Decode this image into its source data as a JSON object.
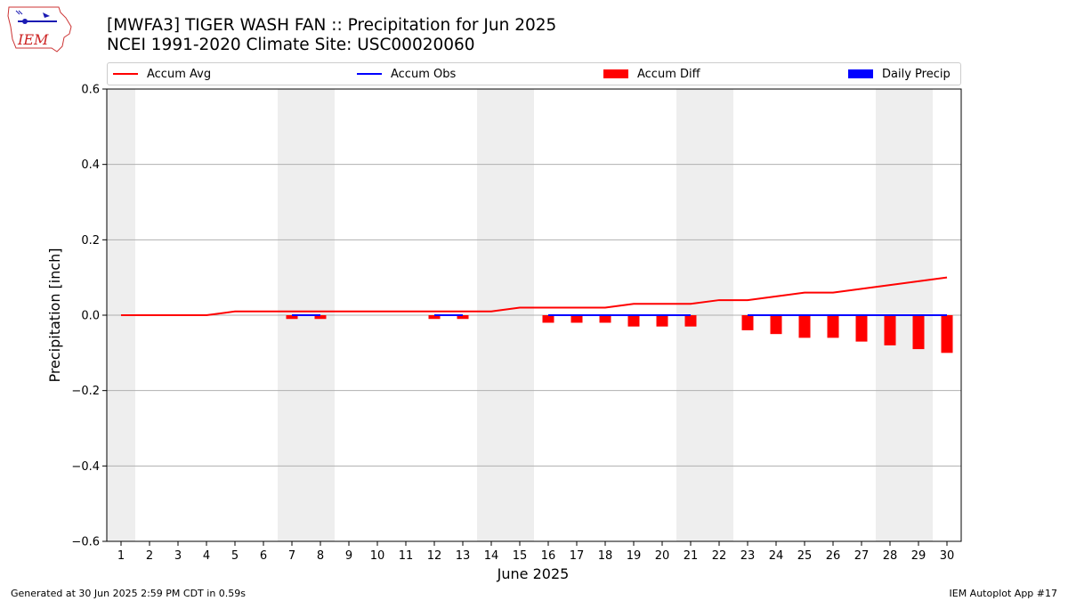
{
  "header": {
    "title_line1": "[MWFA3] TIGER WASH FAN :: Precipitation for Jun 2025",
    "title_line2": "NCEI 1991-2020 Climate Site: USC00020060",
    "logo_text": "IEM"
  },
  "legend": {
    "items": [
      {
        "label": "Accum Avg",
        "color": "#ff0000",
        "kind": "line"
      },
      {
        "label": "Accum Obs",
        "color": "#0000ff",
        "kind": "line"
      },
      {
        "label": "Accum Diff",
        "color": "#ff0000",
        "kind": "box"
      },
      {
        "label": "Daily Precip",
        "color": "#0000ff",
        "kind": "box"
      }
    ]
  },
  "chart_data": {
    "type": "line",
    "xlabel": "June 2025",
    "ylabel": "Precipitation [inch]",
    "ylim": [
      -0.6,
      0.6
    ],
    "yticks": [
      -0.6,
      -0.4,
      -0.2,
      0.0,
      0.2,
      0.4,
      0.6
    ],
    "ytick_labels": [
      "−0.6",
      "−0.4",
      "−0.2",
      "0.0",
      "0.2",
      "0.4",
      "0.6"
    ],
    "grid": true,
    "legend_position": "top",
    "weekend_days": [
      1,
      7,
      8,
      14,
      15,
      21,
      22,
      28,
      29
    ],
    "days": [
      1,
      2,
      3,
      4,
      5,
      6,
      7,
      8,
      9,
      10,
      11,
      12,
      13,
      14,
      15,
      16,
      17,
      18,
      19,
      20,
      21,
      22,
      23,
      24,
      25,
      26,
      27,
      28,
      29,
      30
    ],
    "series": [
      {
        "name": "Accum Avg",
        "type": "line",
        "color": "#ff0000",
        "values": [
          0,
          0,
          0,
          0,
          0.01,
          0.01,
          0.01,
          0.01,
          0.01,
          0.01,
          0.01,
          0.01,
          0.01,
          0.01,
          0.02,
          0.02,
          0.02,
          0.02,
          0.03,
          0.03,
          0.03,
          0.04,
          0.04,
          0.05,
          0.06,
          0.06,
          0.07,
          0.08,
          0.09,
          0.1
        ]
      },
      {
        "name": "Accum Obs",
        "type": "line",
        "color": "#0000ff",
        "values": [
          0,
          0,
          0,
          0,
          0,
          0,
          0,
          0,
          0,
          0,
          0,
          0,
          0,
          0,
          0,
          0,
          0,
          0,
          0,
          0,
          0,
          0,
          0,
          0,
          0,
          0,
          0,
          0,
          0,
          0
        ],
        "visible_segments": [
          [
            1,
            2
          ],
          [
            7,
            8
          ],
          [
            12,
            13
          ],
          [
            16,
            21
          ],
          [
            23,
            30
          ]
        ]
      },
      {
        "name": "Accum Diff",
        "type": "bar",
        "color": "#ff0000",
        "values": [
          0,
          0,
          0,
          0,
          0,
          0,
          -0.01,
          -0.01,
          0,
          0,
          0,
          -0.01,
          -0.01,
          0,
          0,
          -0.02,
          -0.02,
          -0.02,
          -0.03,
          -0.03,
          -0.03,
          0,
          -0.04,
          -0.05,
          -0.06,
          -0.06,
          -0.07,
          -0.08,
          -0.09,
          -0.1
        ]
      },
      {
        "name": "Daily Precip",
        "type": "bar",
        "color": "#0000ff",
        "values": [
          0,
          0,
          0,
          0,
          0,
          0,
          0,
          0,
          0,
          0,
          0,
          0,
          0,
          0,
          0,
          0,
          0,
          0,
          0,
          0,
          0,
          0,
          0,
          0,
          0,
          0,
          0,
          0,
          0,
          0
        ]
      }
    ]
  },
  "footer": {
    "left": "Generated at 30 Jun 2025 2:59 PM CDT in 0.59s",
    "right": "IEM Autoplot App #17"
  }
}
